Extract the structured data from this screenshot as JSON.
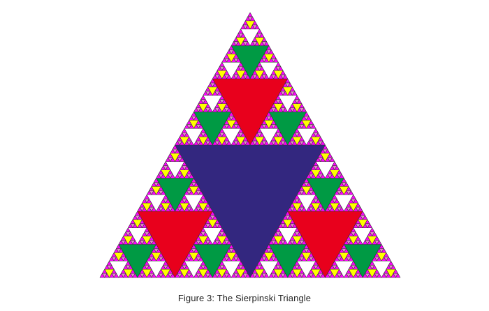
{
  "figure": {
    "caption": "Figure 3: The Sierpinski Triangle",
    "colors": {
      "background_fill": "#ff00ff",
      "outline": "#333333",
      "level_1_hole": "#33277f",
      "level_2_hole": "#e8001c",
      "level_3_hole": "#009a44",
      "level_4_hole": "#ffffff",
      "level_5_hole": "#ffff00",
      "level_6_hole": "#e586c9"
    },
    "recursion_depth": 6
  }
}
